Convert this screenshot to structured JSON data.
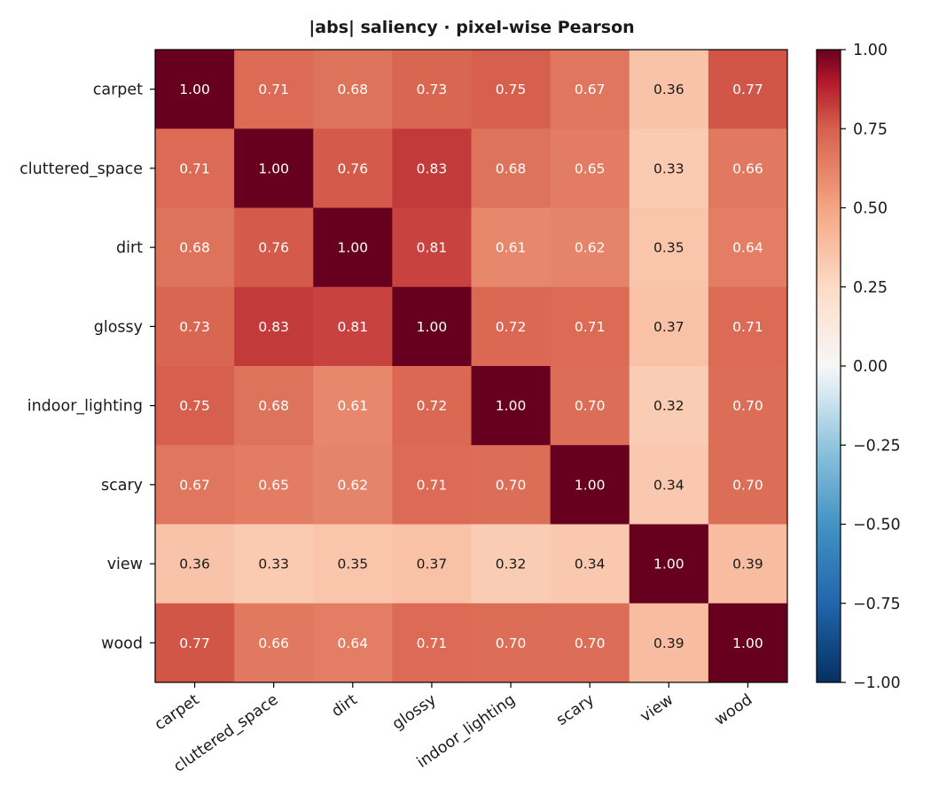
{
  "chart_data": {
    "type": "heatmap",
    "title": "|abs| saliency  ·  pixel-wise Pearson",
    "rows": [
      "carpet",
      "cluttered_space",
      "dirt",
      "glossy",
      "indoor_lighting",
      "scary",
      "view",
      "wood"
    ],
    "columns": [
      "carpet",
      "cluttered_space",
      "dirt",
      "glossy",
      "indoor_lighting",
      "scary",
      "view",
      "wood"
    ],
    "values": [
      [
        1.0,
        0.71,
        0.68,
        0.73,
        0.75,
        0.67,
        0.36,
        0.77
      ],
      [
        0.71,
        1.0,
        0.76,
        0.83,
        0.68,
        0.65,
        0.33,
        0.66
      ],
      [
        0.68,
        0.76,
        1.0,
        0.81,
        0.61,
        0.62,
        0.35,
        0.64
      ],
      [
        0.73,
        0.83,
        0.81,
        1.0,
        0.72,
        0.71,
        0.37,
        0.71
      ],
      [
        0.75,
        0.68,
        0.61,
        0.72,
        1.0,
        0.7,
        0.32,
        0.7
      ],
      [
        0.67,
        0.65,
        0.62,
        0.71,
        0.7,
        1.0,
        0.34,
        0.7
      ],
      [
        0.36,
        0.33,
        0.35,
        0.37,
        0.32,
        0.34,
        1.0,
        0.39
      ],
      [
        0.77,
        0.66,
        0.64,
        0.71,
        0.7,
        0.7,
        0.39,
        1.0
      ]
    ],
    "value_format": "2 decimals",
    "colormap": "RdBu_r",
    "color_range": [
      -1.0,
      1.0
    ],
    "colorbar": {
      "ticks": [
        1.0,
        0.75,
        0.5,
        0.25,
        0.0,
        -0.25,
        -0.5,
        -0.75,
        -1.0
      ],
      "tick_labels": [
        "1.00",
        "0.75",
        "0.50",
        "0.25",
        "0.00",
        "−0.25",
        "−0.50",
        "−0.75",
        "−1.00"
      ],
      "placement": "right"
    },
    "grid": false,
    "x_tick_rotation": "rotated about 35 degrees"
  }
}
